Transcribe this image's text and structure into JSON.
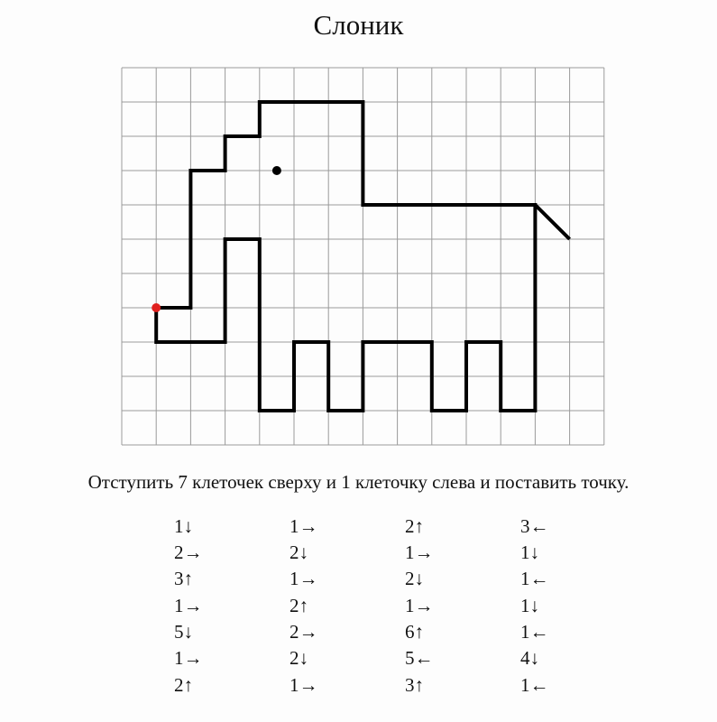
{
  "title": "Слоник",
  "instruction": "Отступить 7 клеточек сверху и 1 клеточку слева и поставить точку.",
  "grid": {
    "columns": 14,
    "rows": 11,
    "start_cell": [
      1,
      7
    ],
    "eye_cell": [
      4.5,
      3
    ],
    "tail_end_cell": [
      13,
      5
    ],
    "line_color": "#000000",
    "grid_color": "#9a9a9a",
    "start_dot_color": "#e0201e"
  },
  "steps": [
    [
      "1↓",
      "2→",
      "3↑",
      "1→",
      "5↓",
      "1→",
      "2↑"
    ],
    [
      "1→",
      "2↓",
      "1→",
      "2↑",
      "2→",
      "2↓",
      "1→"
    ],
    [
      "2↑",
      "1→",
      "2↓",
      "1→",
      "6↑",
      "5←",
      "3↑"
    ],
    [
      "3←",
      "1↓",
      "1←",
      "1↓",
      "1←",
      "4↓",
      "1←"
    ]
  ]
}
